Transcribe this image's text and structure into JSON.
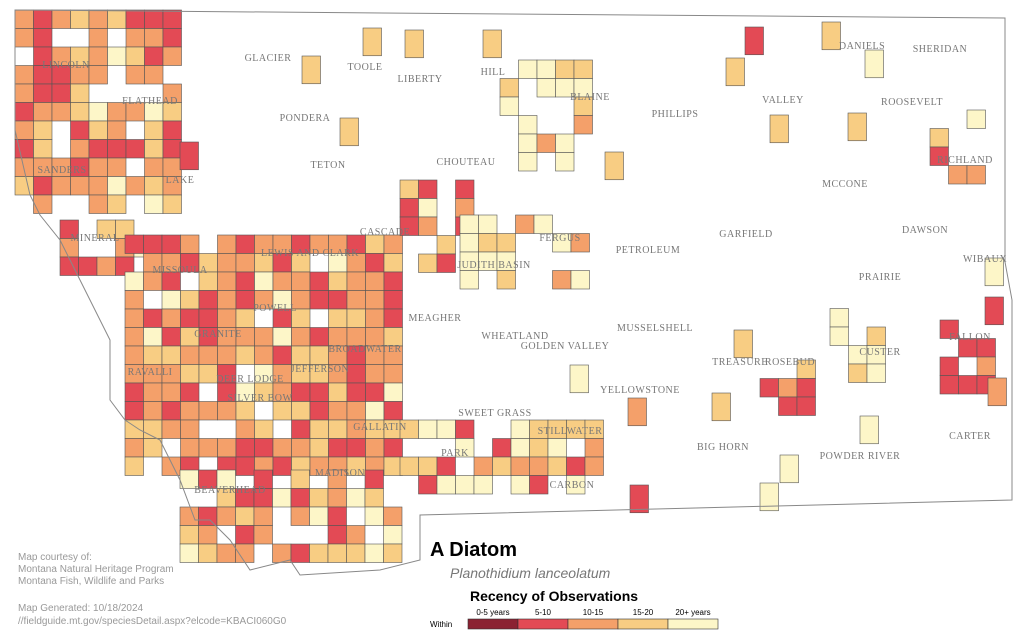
{
  "title": "A Diatom",
  "subtitle": "Planothidium lanceolatum",
  "legend": {
    "title": "Recency of Observations",
    "prefix": "Within",
    "labels": [
      "0-5 years",
      "5-10",
      "10-15",
      "15-20",
      "20+ years"
    ]
  },
  "credits": [
    "Map courtesy of:",
    "Montana Natural Heritage Program",
    "Montana Fish, Wildlife and Parks"
  ],
  "generated": [
    "Map Generated: 10/18/2024",
    "//fieldguide.mt.gov/speciesDetail.aspx?elcode=KBACI060G0"
  ],
  "counties": [
    "GLACIER",
    "TOOLE",
    "LIBERTY",
    "HILL",
    "BLAINE",
    "PHILLIPS",
    "VALLEY",
    "DANIELS",
    "SHERIDAN",
    "ROOSEVELT",
    "RICHLAND",
    "LINCOLN",
    "FLATHEAD",
    "PONDERA",
    "TETON",
    "CHOUTEAU",
    "LAKE",
    "SANDERS",
    "MCCONE",
    "GARFIELD",
    "DAWSON",
    "CASCADE",
    "MINERAL",
    "FERGUS",
    "PETROLEUM",
    "JUDITH BASIN",
    "WIBAUX",
    "LEWIS AND CLARK",
    "MISSOULA",
    "PRAIRIE",
    "POWELL",
    "MEAGHER",
    "MUSSELSHELL",
    "FALLON",
    "WHEATLAND",
    "GOLDEN VALLEY",
    "GRANITE",
    "BROADWATER",
    "CUSTER",
    "TREASURE",
    "ROSEBUD",
    "RAVALLI",
    "DEER LODGE",
    "JEFFERSON",
    "YELLOWSTONE",
    "SILVER BOW",
    "SWEET GRASS",
    "STILLWATER",
    "GALLATIN",
    "PARK",
    "BIG HORN",
    "CARTER",
    "POWDER RIVER",
    "MADISON",
    "CARBON",
    "BEAVERHEAD"
  ]
}
